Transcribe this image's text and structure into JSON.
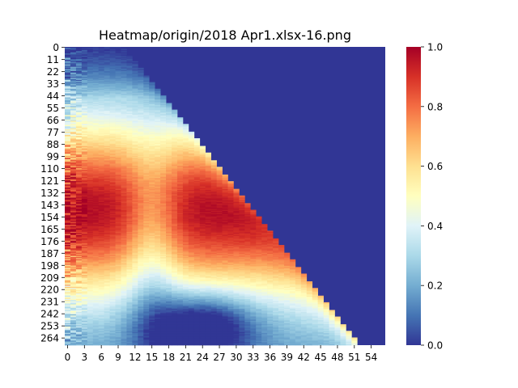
{
  "chart_data": {
    "type": "heatmap",
    "title": "Heatmap/origin/2018 Apr1.xlsx-16.png",
    "xlabel": "",
    "ylabel": "",
    "x_tick_labels": [
      "0",
      "3",
      "6",
      "9",
      "12",
      "15",
      "18",
      "21",
      "24",
      "27",
      "30",
      "33",
      "36",
      "39",
      "42",
      "45",
      "48",
      "51",
      "54"
    ],
    "y_tick_labels": [
      "0",
      "11",
      "22",
      "33",
      "44",
      "55",
      "66",
      "77",
      "88",
      "99",
      "110",
      "121",
      "132",
      "143",
      "154",
      "165",
      "176",
      "187",
      "198",
      "209",
      "220",
      "231",
      "242",
      "253",
      "264"
    ],
    "n_columns": 57,
    "n_rows": 271,
    "colormap": "RdYlBu_r",
    "colorbar": {
      "range": [
        0.0,
        1.0
      ],
      "tick_labels": [
        "0.0",
        "0.2",
        "0.4",
        "0.6",
        "0.8",
        "1.0"
      ],
      "stops": [
        "#313695",
        "#4575b4",
        "#74add1",
        "#abd9e9",
        "#e0f3f8",
        "#ffffbf",
        "#fee090",
        "#fdae61",
        "#f46d43",
        "#d73027",
        "#a50026"
      ]
    },
    "background_value": 0.0,
    "structure": {
      "triangle_boundary": {
        "description": "cells with column index beyond the diagonal are 0.0",
        "points_row_col": [
          [
            0,
            10
          ],
          [
            44,
            17
          ],
          [
            264,
            51
          ]
        ]
      },
      "high_band_peak": {
        "value": 0.95,
        "rows": [
          120,
          175
        ],
        "columns": [
          0,
          20
        ]
      },
      "low_trough_band": {
        "value": 0.3,
        "rows": [
          225,
          270
        ],
        "columns": [
          15,
          35
        ]
      },
      "left_column_noise": true
    }
  }
}
